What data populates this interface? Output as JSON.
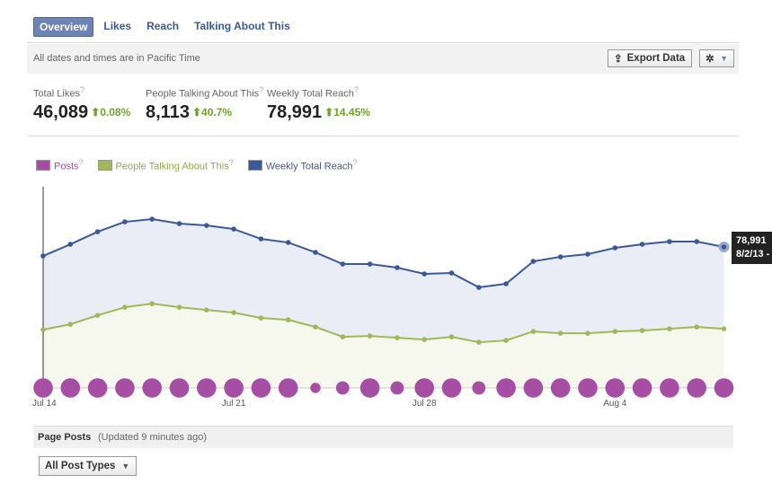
{
  "tabs": [
    "Overview",
    "Likes",
    "Reach",
    "Talking About This"
  ],
  "timezone_note": "All dates and times are in Pacific Time",
  "export_label": "Export Data",
  "stats": [
    {
      "label": "Total Likes",
      "value": "46,089",
      "change": "0.08%"
    },
    {
      "label": "People Talking About This",
      "value": "8,113",
      "change": "40.7%"
    },
    {
      "label": "Weekly Total Reach",
      "value": "78,991",
      "change": "14.45%"
    }
  ],
  "help_mark": "?",
  "tooltip": {
    "value": "78,991",
    "date": "8/2/13 -"
  },
  "page_posts": {
    "title": "Page Posts",
    "updated": "(Updated 9 minutes ago)",
    "filter": "All Post Types"
  },
  "colors": {
    "reach": "#3b5998",
    "ptat": "#9fb95a",
    "posts": "#a64ea3"
  },
  "chart_data": {
    "type": "line",
    "legend": [
      "Posts",
      "People Talking About This",
      "Weekly Total Reach"
    ],
    "x_ticks": [
      {
        "index": 0,
        "label": "Jul 14"
      },
      {
        "index": 7,
        "label": "Jul 21"
      },
      {
        "index": 14,
        "label": "Jul 28"
      },
      {
        "index": 21,
        "label": "Aug 4"
      }
    ],
    "reach_ylim": [
      0,
      112700
    ],
    "ptat_ylim": [
      0,
      27600
    ],
    "series": [
      {
        "name": "Weekly Total Reach",
        "values": [
          73941,
          80480,
          87522,
          93055,
          94564,
          92049,
          91043,
          89031,
          83498,
          81486,
          75953,
          69414,
          69414,
          67402,
          63881,
          64384,
          56336,
          58348,
          70923,
          73438,
          74947,
          78468,
          80480,
          81989,
          81989,
          78991
        ]
      },
      {
        "name": "People Talking About This",
        "values": [
          7995,
          8733,
          9963,
          11070,
          11562,
          11070,
          10701,
          10332,
          9594,
          9348,
          8364,
          7011,
          7134,
          6888,
          6642,
          7011,
          6273,
          6519,
          7749,
          7503,
          7503,
          7749,
          7872,
          8118,
          8364,
          8113
        ]
      },
      {
        "name": "Posts",
        "values": [
          4,
          4,
          4,
          4,
          4,
          4,
          4,
          4,
          4,
          4,
          1,
          2,
          4,
          2,
          4,
          4,
          2,
          4,
          4,
          4,
          4,
          4,
          4,
          4,
          4,
          4
        ]
      }
    ]
  }
}
